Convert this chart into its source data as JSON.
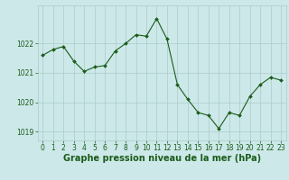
{
  "x": [
    0,
    1,
    2,
    3,
    4,
    5,
    6,
    7,
    8,
    9,
    10,
    11,
    12,
    13,
    14,
    15,
    16,
    17,
    18,
    19,
    20,
    21,
    22,
    23
  ],
  "y": [
    1021.6,
    1021.8,
    1021.9,
    1021.4,
    1021.05,
    1021.2,
    1021.25,
    1021.75,
    1022.0,
    1022.3,
    1022.25,
    1022.85,
    1022.15,
    1020.6,
    1020.1,
    1019.65,
    1019.55,
    1019.1,
    1019.65,
    1019.55,
    1020.2,
    1020.6,
    1020.85,
    1020.75
  ],
  "line_color": "#1a5c1a",
  "marker_color": "#1a5c1a",
  "bg_color": "#cce8e8",
  "grid_color": "#aacccc",
  "label_color": "#1a5c1a",
  "xlabel": "Graphe pression niveau de la mer (hPa)",
  "ylim": [
    1018.7,
    1023.3
  ],
  "yticks": [
    1019,
    1020,
    1021,
    1022
  ],
  "xticks": [
    0,
    1,
    2,
    3,
    4,
    5,
    6,
    7,
    8,
    9,
    10,
    11,
    12,
    13,
    14,
    15,
    16,
    17,
    18,
    19,
    20,
    21,
    22,
    23
  ],
  "tick_fontsize": 5.5,
  "xlabel_fontsize": 7.0,
  "marker_size": 2.0,
  "line_width": 0.8
}
